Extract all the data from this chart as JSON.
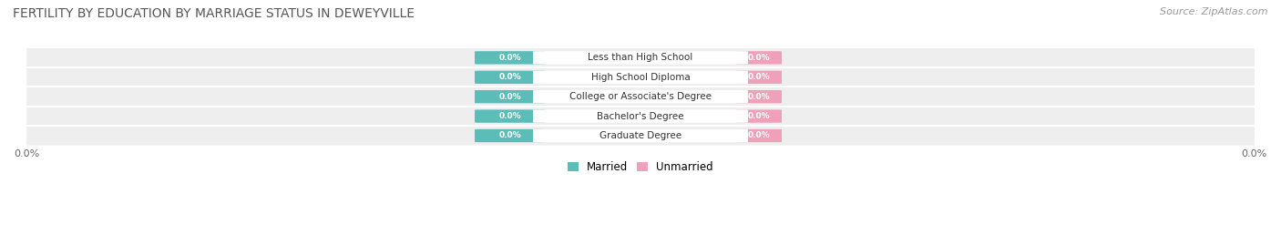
{
  "title": "FERTILITY BY EDUCATION BY MARRIAGE STATUS IN DEWEYVILLE",
  "source": "Source: ZipAtlas.com",
  "categories": [
    "Less than High School",
    "High School Diploma",
    "College or Associate's Degree",
    "Bachelor's Degree",
    "Graduate Degree"
  ],
  "married_values": [
    0.0,
    0.0,
    0.0,
    0.0,
    0.0
  ],
  "unmarried_values": [
    0.0,
    0.0,
    0.0,
    0.0,
    0.0
  ],
  "married_color": "#5bbcb8",
  "unmarried_color": "#f0a0b8",
  "row_bg_color": "#eeeeee",
  "label_married": "Married",
  "label_unmarried": "Unmarried",
  "title_fontsize": 10,
  "source_fontsize": 8,
  "background_color": "#ffffff"
}
